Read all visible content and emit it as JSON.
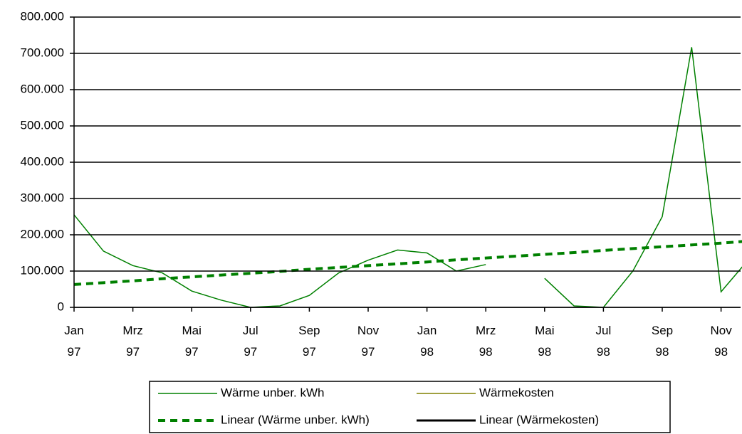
{
  "chart_data": {
    "type": "line",
    "categories": [
      "Jan 97",
      null,
      "Mrz 97",
      null,
      "Mai 97",
      null,
      "Jul 97",
      null,
      "Sep 97",
      null,
      "Nov 97",
      null,
      "Jan 98",
      null,
      "Mrz 98",
      null,
      "Mai 98",
      null,
      "Jul 98",
      null,
      "Sep 98",
      null,
      "Nov 98",
      null
    ],
    "series": [
      {
        "name": "Wärme unber. kWh",
        "color": "#008000",
        "width": 1.5,
        "dashed": false,
        "values": [
          255000,
          155000,
          115000,
          95000,
          45000,
          20000,
          0,
          4000,
          33000,
          95000,
          130000,
          158000,
          150000,
          100000,
          118000,
          null,
          80000,
          4000,
          0,
          100000,
          250000,
          717000,
          43000,
          138000
        ]
      },
      {
        "name": "Wärmekosten",
        "color": "#808000",
        "width": 1.5,
        "dashed": false,
        "values": [
          null,
          null,
          null,
          null,
          null,
          null,
          null,
          null,
          null,
          null,
          null,
          null,
          null,
          null,
          null,
          null,
          null,
          null,
          null,
          null,
          null,
          null,
          null,
          null
        ]
      },
      {
        "name": "Linear (Wärme unber. kWh)",
        "color": "#008000",
        "width": 4,
        "dashed": true,
        "values": [
          63000,
          68000,
          73000,
          79000,
          84000,
          89000,
          94000,
          99000,
          105000,
          110000,
          115000,
          120000,
          125000,
          131000,
          136000,
          141000,
          146000,
          151000,
          157000,
          162000,
          167000,
          172000,
          177000,
          183000
        ]
      },
      {
        "name": "Linear (Wärmekosten)",
        "color": "#000000",
        "width": 3,
        "dashed": false,
        "values": [
          null,
          null,
          null,
          null,
          null,
          null,
          null,
          null,
          null,
          null,
          null,
          null,
          null,
          null,
          null,
          null,
          null,
          null,
          null,
          null,
          null,
          null,
          null,
          null
        ]
      }
    ],
    "ylim": [
      0,
      800000
    ],
    "yticks": [
      {
        "value": 0,
        "label": "0"
      },
      {
        "value": 100000,
        "label": "100.000"
      },
      {
        "value": 200000,
        "label": "200.000"
      },
      {
        "value": 300000,
        "label": "300.000"
      },
      {
        "value": 400000,
        "label": "400.000"
      },
      {
        "value": 500000,
        "label": "500.000"
      },
      {
        "value": 600000,
        "label": "600.000"
      },
      {
        "value": 700000,
        "label": "700.000"
      },
      {
        "value": 800000,
        "label": "800.000"
      }
    ],
    "grid": true
  }
}
